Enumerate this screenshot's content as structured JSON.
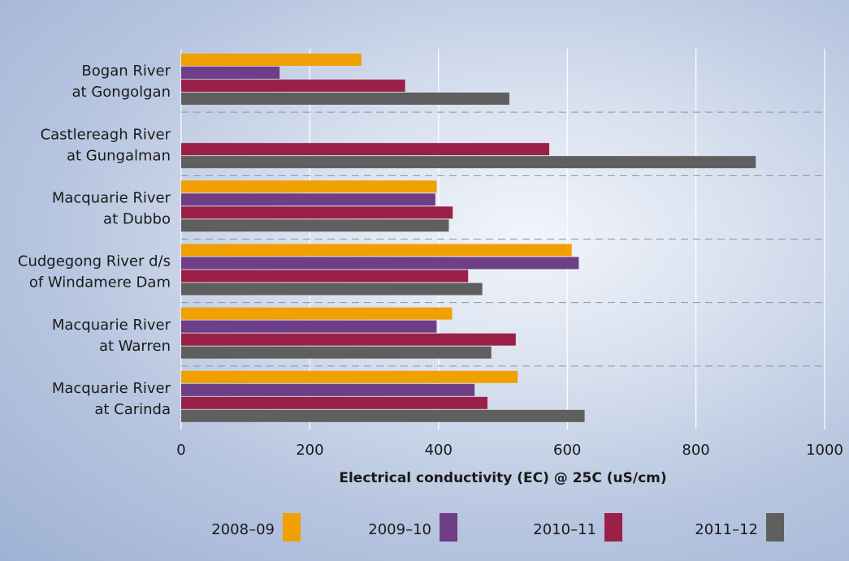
{
  "chart_data": {
    "type": "bar",
    "orientation": "horizontal",
    "categories": [
      [
        "Bogan River",
        "at Gongolgan"
      ],
      [
        "Castlereagh River",
        "at Gungalman"
      ],
      [
        "Macquarie River",
        "at Dubbo"
      ],
      [
        "Cudgegong River d/s",
        "of Windamere Dam"
      ],
      [
        "Macquarie River",
        "at Warren"
      ],
      [
        "Macquarie River",
        "at Carinda"
      ]
    ],
    "series": [
      {
        "name": "2008–09",
        "color": "#f0a000",
        "values": [
          280,
          null,
          397,
          607,
          421,
          523
        ]
      },
      {
        "name": "2009–10",
        "color": "#6e3e86",
        "values": [
          153,
          null,
          395,
          618,
          397,
          456
        ]
      },
      {
        "name": "2010–11",
        "color": "#9a2048",
        "values": [
          348,
          572,
          422,
          446,
          520,
          476
        ]
      },
      {
        "name": "2011–12",
        "color": "#5f5f5f",
        "values": [
          510,
          893,
          416,
          468,
          482,
          627
        ]
      }
    ],
    "xlim": [
      0,
      1000
    ],
    "xticks": [
      0,
      200,
      400,
      600,
      800,
      1000
    ],
    "xlabel": "Electrical conductivity (EC) @ 25C (uS/cm)",
    "grid": "vertical",
    "legend_position": "bottom"
  }
}
